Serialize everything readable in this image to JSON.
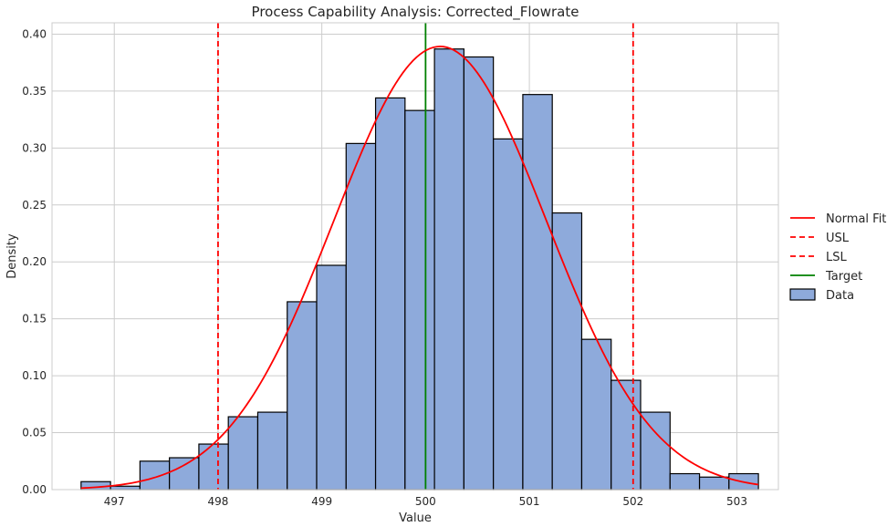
{
  "chart_data": {
    "type": "bar",
    "title": "Process Capability Analysis: Corrected_Flowrate",
    "xlabel": "Value",
    "ylabel": "Density",
    "xlim": [
      496.4,
      503.4
    ],
    "ylim": [
      0,
      0.41
    ],
    "xticks": [
      497,
      498,
      499,
      500,
      501,
      502,
      503
    ],
    "xtick_labels": [
      "497",
      "498",
      "499",
      "500",
      "501",
      "502",
      "503"
    ],
    "yticks": [
      0.0,
      0.05,
      0.1,
      0.15,
      0.2,
      0.25,
      0.3,
      0.35,
      0.4
    ],
    "ytick_labels": [
      "0.00",
      "0.05",
      "0.10",
      "0.15",
      "0.20",
      "0.25",
      "0.30",
      "0.35",
      "0.40"
    ],
    "grid": true,
    "legend_position": "center-right",
    "histogram": {
      "name": "Data",
      "bin_start": 496.68,
      "bin_width": 0.2838,
      "values": [
        0.007,
        0.003,
        0.025,
        0.028,
        0.04,
        0.064,
        0.068,
        0.165,
        0.197,
        0.304,
        0.344,
        0.333,
        0.387,
        0.38,
        0.308,
        0.347,
        0.243,
        0.132,
        0.096,
        0.068,
        0.014,
        0.011,
        0.014
      ],
      "color": "#8eaadb"
    },
    "normal_fit": {
      "name": "Normal Fit",
      "mean": 500.14,
      "std": 1.025,
      "color": "#ff0000"
    },
    "lines": [
      {
        "name": "USL",
        "x": 502.0,
        "color": "#ff0000",
        "style": "dashed"
      },
      {
        "name": "LSL",
        "x": 498.0,
        "color": "#ff0000",
        "style": "dashed"
      },
      {
        "name": "Target",
        "x": 500.0,
        "color": "#008000",
        "style": "solid"
      }
    ],
    "legend": [
      "Normal Fit",
      "USL",
      "LSL",
      "Target",
      "Data"
    ]
  }
}
